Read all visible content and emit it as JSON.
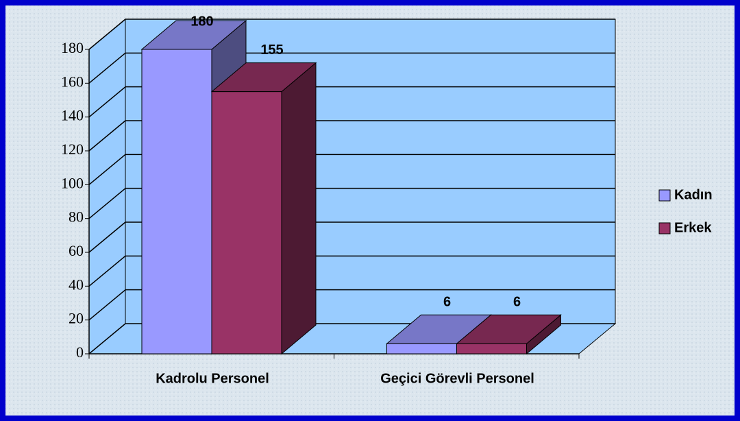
{
  "chart_data": {
    "type": "bar3d",
    "categories": [
      "Kadrolu Personel",
      "Geçici Görevli Personel"
    ],
    "series": [
      {
        "name": "Kadın",
        "color": "#9999ff",
        "values": [
          180,
          6
        ]
      },
      {
        "name": "Erkek",
        "color": "#993366",
        "values": [
          155,
          6
        ]
      }
    ],
    "ylim": [
      0,
      180
    ],
    "yticks": [
      0,
      20,
      40,
      60,
      80,
      100,
      120,
      140,
      160,
      180
    ],
    "grid": true,
    "legend": "right"
  }
}
